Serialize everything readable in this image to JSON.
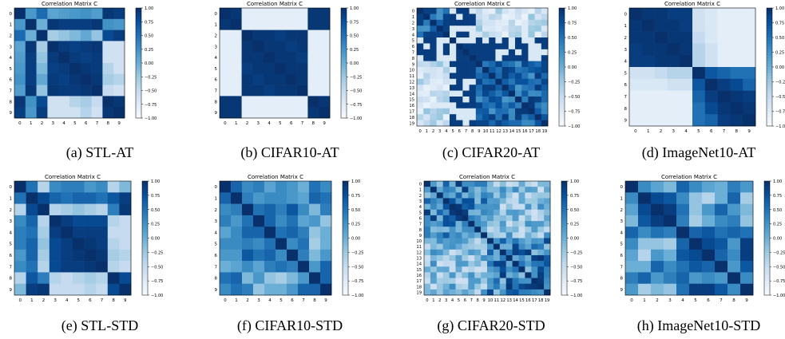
{
  "chart_data": [
    {
      "type": "heatmap",
      "title": "Correlation Matrix C",
      "caption": "(a) STL-AT",
      "size": 10,
      "colorbar_ticks": [
        "1.00",
        "0.75",
        "0.50",
        "0.25",
        "0.00",
        "−0.25",
        "−0.50",
        "−0.75",
        "−1.00"
      ],
      "vmin": -1,
      "vmax": 1,
      "matrix": [
        [
          1.0,
          0.2,
          0.55,
          0.1,
          0.15,
          0.2,
          0.25,
          0.15,
          0.95,
          0.9
        ],
        [
          0.2,
          1.0,
          0.0,
          0.95,
          0.9,
          0.9,
          0.9,
          0.95,
          0.25,
          0.2
        ],
        [
          0.55,
          0.0,
          1.0,
          -0.3,
          -0.2,
          -0.1,
          0.05,
          -0.2,
          0.8,
          0.9
        ],
        [
          0.1,
          0.95,
          -0.3,
          1.0,
          0.92,
          0.88,
          0.92,
          0.95,
          -0.6,
          -0.6
        ],
        [
          0.15,
          0.9,
          -0.2,
          0.92,
          1.0,
          0.92,
          0.88,
          0.92,
          -0.6,
          -0.6
        ],
        [
          0.2,
          0.9,
          -0.1,
          0.88,
          0.92,
          1.0,
          0.95,
          0.92,
          -0.4,
          -0.6
        ],
        [
          0.25,
          0.9,
          0.05,
          0.92,
          0.88,
          0.95,
          1.0,
          0.95,
          -0.3,
          -0.4
        ],
        [
          0.15,
          0.95,
          -0.2,
          0.95,
          0.92,
          0.92,
          0.95,
          1.0,
          -0.5,
          -0.6
        ],
        [
          0.95,
          0.25,
          0.8,
          -0.6,
          -0.6,
          -0.4,
          -0.3,
          -0.5,
          1.0,
          0.95
        ],
        [
          0.9,
          0.2,
          0.9,
          -0.6,
          -0.6,
          -0.6,
          -0.4,
          -0.6,
          0.95,
          1.0
        ]
      ]
    },
    {
      "type": "heatmap",
      "title": "Correlation Matrix C",
      "caption": "(b) CIFAR10-AT",
      "size": 10,
      "colorbar_ticks": [
        "1.00",
        "0.75",
        "0.50",
        "0.25",
        "0.00",
        "−0.25",
        "−0.50",
        "−0.75",
        "−1.00"
      ],
      "vmin": -1,
      "vmax": 1,
      "matrix": [
        [
          1.0,
          0.95,
          -0.8,
          -0.8,
          -0.8,
          -0.8,
          -0.8,
          -0.8,
          0.95,
          0.95
        ],
        [
          0.95,
          1.0,
          -0.8,
          -0.8,
          -0.8,
          -0.8,
          -0.8,
          -0.8,
          0.95,
          0.95
        ],
        [
          -0.8,
          -0.8,
          1.0,
          0.95,
          0.95,
          0.9,
          0.95,
          0.95,
          -0.8,
          -0.8
        ],
        [
          -0.8,
          -0.8,
          0.95,
          1.0,
          0.95,
          0.95,
          0.9,
          0.95,
          -0.8,
          -0.8
        ],
        [
          -0.8,
          -0.8,
          0.95,
          0.95,
          1.0,
          0.95,
          0.95,
          0.9,
          -0.8,
          -0.8
        ],
        [
          -0.8,
          -0.8,
          0.9,
          0.95,
          0.95,
          1.0,
          0.95,
          0.95,
          -0.8,
          -0.8
        ],
        [
          -0.8,
          -0.8,
          0.95,
          0.9,
          0.95,
          0.95,
          1.0,
          0.95,
          -0.8,
          -0.8
        ],
        [
          -0.8,
          -0.8,
          0.95,
          0.95,
          0.9,
          0.95,
          0.95,
          1.0,
          -0.8,
          -0.8
        ],
        [
          0.95,
          0.95,
          -0.8,
          -0.8,
          -0.8,
          -0.8,
          -0.8,
          -0.8,
          1.0,
          0.95
        ],
        [
          0.95,
          0.95,
          -0.8,
          -0.8,
          -0.8,
          -0.8,
          -0.8,
          -0.8,
          0.95,
          1.0
        ]
      ]
    },
    {
      "type": "heatmap",
      "title": "Correlation Matrix C",
      "caption": "(c) CIFAR20-AT",
      "size": 20,
      "colorbar_ticks": [
        "1.00",
        "0.75",
        "0.50",
        "0.25",
        "0.00",
        "−0.25",
        "−0.50",
        "−0.75",
        "−1.00"
      ],
      "vmin": -1,
      "vmax": 1,
      "generator": "block-ab"
    },
    {
      "type": "heatmap",
      "title": "Correlation Matrix C",
      "caption": "(d) ImageNet10-AT",
      "size": 10,
      "colorbar_ticks": [
        "1.00",
        "0.75",
        "0.50",
        "0.25",
        "0.00",
        "−0.25",
        "−0.50",
        "−0.75",
        "−1.00"
      ],
      "vmin": -1,
      "vmax": 1,
      "matrix": [
        [
          1.0,
          0.95,
          0.95,
          0.9,
          0.9,
          -0.6,
          -0.7,
          -0.8,
          -0.8,
          -0.8
        ],
        [
          0.95,
          1.0,
          0.95,
          0.95,
          0.9,
          -0.6,
          -0.7,
          -0.8,
          -0.8,
          -0.8
        ],
        [
          0.95,
          0.95,
          1.0,
          0.95,
          0.95,
          -0.5,
          -0.7,
          -0.8,
          -0.8,
          -0.8
        ],
        [
          0.9,
          0.95,
          0.95,
          1.0,
          0.95,
          -0.4,
          -0.6,
          -0.8,
          -0.8,
          -0.8
        ],
        [
          0.9,
          0.9,
          0.95,
          0.95,
          1.0,
          -0.4,
          -0.6,
          -0.8,
          -0.8,
          -0.8
        ],
        [
          -0.6,
          -0.6,
          -0.5,
          -0.4,
          -0.4,
          1.0,
          0.7,
          0.6,
          0.5,
          0.5
        ],
        [
          -0.7,
          -0.7,
          -0.7,
          -0.6,
          -0.6,
          0.7,
          1.0,
          0.9,
          0.8,
          0.6
        ],
        [
          -0.8,
          -0.8,
          -0.8,
          -0.8,
          -0.8,
          0.6,
          0.9,
          1.0,
          0.95,
          0.9
        ],
        [
          -0.8,
          -0.8,
          -0.8,
          -0.8,
          -0.8,
          0.5,
          0.8,
          0.95,
          1.0,
          0.95
        ],
        [
          -0.8,
          -0.8,
          -0.8,
          -0.8,
          -0.8,
          0.5,
          0.6,
          0.9,
          0.95,
          1.0
        ]
      ]
    },
    {
      "type": "heatmap",
      "title": "Correlation Matrix C",
      "caption": "(e) STL-STD",
      "size": 10,
      "colorbar_ticks": [
        "1.00",
        "0.75",
        "0.50",
        "0.25",
        "0.00",
        "−0.25",
        "−0.50",
        "−0.75",
        "−1.00"
      ],
      "vmin": -1,
      "vmax": 1,
      "matrix": [
        [
          1.0,
          0.5,
          -0.4,
          0.3,
          0.4,
          0.4,
          0.2,
          0.3,
          -0.4,
          -0.1
        ],
        [
          0.5,
          1.0,
          0.8,
          0.6,
          0.5,
          0.6,
          0.6,
          0.5,
          0.7,
          0.9
        ],
        [
          -0.4,
          0.8,
          1.0,
          -0.4,
          -0.3,
          -0.2,
          -0.3,
          -0.4,
          0.4,
          0.95
        ],
        [
          0.3,
          0.6,
          -0.4,
          1.0,
          0.9,
          0.8,
          0.8,
          0.8,
          -0.4,
          -0.5
        ],
        [
          0.4,
          0.5,
          -0.3,
          0.9,
          1.0,
          0.9,
          0.9,
          0.9,
          -0.5,
          -0.5
        ],
        [
          0.4,
          0.6,
          -0.2,
          0.8,
          0.9,
          1.0,
          0.95,
          0.9,
          -0.4,
          -0.5
        ],
        [
          0.2,
          0.6,
          -0.3,
          0.8,
          0.9,
          0.95,
          1.0,
          0.95,
          -0.3,
          -0.4
        ],
        [
          0.3,
          0.5,
          -0.4,
          0.8,
          0.9,
          0.9,
          0.95,
          1.0,
          -0.4,
          -0.5
        ],
        [
          -0.4,
          0.7,
          0.4,
          -0.4,
          -0.5,
          -0.4,
          -0.3,
          -0.4,
          1.0,
          0.8
        ],
        [
          -0.1,
          0.9,
          0.95,
          -0.5,
          -0.5,
          -0.5,
          -0.4,
          -0.5,
          0.8,
          1.0
        ]
      ]
    },
    {
      "type": "heatmap",
      "title": "Correlation Matrix C",
      "caption": "(f) CIFAR10-STD",
      "size": 10,
      "colorbar_ticks": [
        "1.00",
        "0.75",
        "0.50",
        "0.25",
        "0.00",
        "−0.25",
        "−0.50",
        "−0.75",
        "−1.00"
      ],
      "vmin": -1,
      "vmax": 1,
      "matrix": [
        [
          1.0,
          0.6,
          0.3,
          0.4,
          0.1,
          0.3,
          0.2,
          0.0,
          0.5,
          0.3
        ],
        [
          0.6,
          1.0,
          0.4,
          0.2,
          0.3,
          0.3,
          0.2,
          0.1,
          0.6,
          0.5
        ],
        [
          0.3,
          0.4,
          1.0,
          0.5,
          0.6,
          0.4,
          0.7,
          0.3,
          -0.1,
          0.4
        ],
        [
          0.4,
          0.2,
          0.5,
          1.0,
          0.6,
          0.3,
          0.5,
          0.1,
          0.2,
          -0.2
        ],
        [
          0.1,
          0.3,
          0.6,
          0.6,
          1.0,
          0.5,
          0.6,
          0.4,
          -0.2,
          0.0
        ],
        [
          0.3,
          0.3,
          0.4,
          0.3,
          0.5,
          1.0,
          0.3,
          0.5,
          -0.3,
          0.0
        ],
        [
          0.2,
          0.2,
          0.7,
          0.5,
          0.6,
          0.3,
          1.0,
          0.4,
          -0.1,
          0.2
        ],
        [
          0.0,
          0.1,
          0.3,
          0.1,
          0.4,
          0.5,
          0.4,
          1.0,
          0.2,
          0.6
        ],
        [
          0.5,
          0.6,
          -0.1,
          0.2,
          -0.2,
          -0.3,
          -0.1,
          0.2,
          1.0,
          0.6
        ],
        [
          0.3,
          0.5,
          0.4,
          -0.2,
          0.0,
          0.0,
          0.2,
          0.6,
          0.6,
          1.0
        ]
      ]
    },
    {
      "type": "heatmap",
      "title": "Correlation Matrix C",
      "caption": "(g) CIFAR20-STD",
      "size": 20,
      "colorbar_ticks": [
        "1.00",
        "0.75",
        "0.50",
        "0.25",
        "0.00",
        "−0.25",
        "−0.50",
        "−0.75",
        "−1.00"
      ],
      "vmin": -1,
      "vmax": 1,
      "generator": "block-noisy"
    },
    {
      "type": "heatmap",
      "title": "Correlation Matrix C",
      "caption": "(h) ImageNet10-STD",
      "size": 10,
      "colorbar_ticks": [
        "1.00",
        "0.75",
        "0.50",
        "0.25",
        "0.00",
        "−0.25",
        "−0.50",
        "−0.75",
        "−1.00"
      ],
      "vmin": -1,
      "vmax": 1,
      "matrix": [
        [
          1.0,
          0.3,
          0.1,
          -0.1,
          0.6,
          0.3,
          0.1,
          0.0,
          0.4,
          0.2
        ],
        [
          0.3,
          1.0,
          0.8,
          0.7,
          0.3,
          -0.2,
          -0.4,
          0.0,
          0.6,
          -0.3
        ],
        [
          0.1,
          0.8,
          1.0,
          0.9,
          0.5,
          -0.2,
          0.2,
          0.6,
          0.2,
          -0.1
        ],
        [
          -0.1,
          0.7,
          0.9,
          1.0,
          0.4,
          -0.3,
          0.0,
          0.3,
          0.4,
          -0.2
        ],
        [
          0.6,
          0.3,
          0.5,
          0.4,
          1.0,
          0.6,
          0.7,
          0.5,
          0.6,
          0.5
        ],
        [
          0.3,
          -0.2,
          -0.2,
          -0.3,
          0.6,
          1.0,
          0.8,
          0.7,
          0.2,
          0.9
        ],
        [
          0.1,
          -0.4,
          0.2,
          0.0,
          0.7,
          0.8,
          1.0,
          0.6,
          0.3,
          0.9
        ],
        [
          0.0,
          0.0,
          0.6,
          0.3,
          0.5,
          0.7,
          0.6,
          1.0,
          0.2,
          0.7
        ],
        [
          0.4,
          0.6,
          0.2,
          0.4,
          0.6,
          0.2,
          0.3,
          0.2,
          1.0,
          0.3
        ],
        [
          0.2,
          -0.3,
          -0.1,
          -0.2,
          0.5,
          0.9,
          0.9,
          0.7,
          0.3,
          1.0
        ]
      ]
    }
  ]
}
